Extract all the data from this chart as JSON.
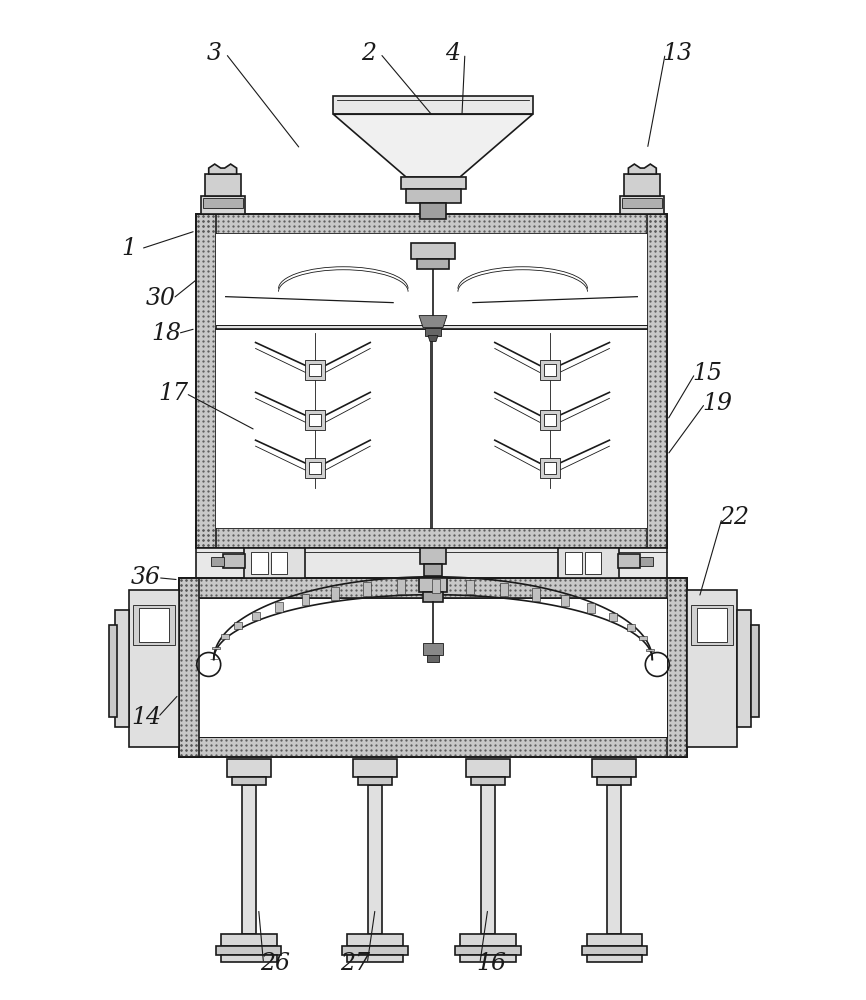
{
  "bg_color": "#ffffff",
  "line_color": "#1a1a1a",
  "lw_main": 1.2,
  "lw_thin": 0.6,
  "lw_thick": 2.0,
  "label_fontsize": 17,
  "labels_data": [
    [
      "1",
      128,
      248,
      195,
      230
    ],
    [
      "2",
      368,
      52,
      433,
      115
    ],
    [
      "3",
      213,
      52,
      300,
      148
    ],
    [
      "4",
      453,
      52,
      462,
      115
    ],
    [
      "13",
      678,
      52,
      648,
      148
    ],
    [
      "14",
      145,
      718,
      178,
      695
    ],
    [
      "15",
      708,
      373,
      668,
      420
    ],
    [
      "16",
      492,
      965,
      488,
      910
    ],
    [
      "17",
      173,
      393,
      255,
      430
    ],
    [
      "18",
      165,
      333,
      195,
      328
    ],
    [
      "19",
      718,
      403,
      668,
      455
    ],
    [
      "22",
      735,
      518,
      700,
      598
    ],
    [
      "26",
      275,
      965,
      258,
      910
    ],
    [
      "27",
      355,
      965,
      375,
      910
    ],
    [
      "30",
      160,
      298,
      197,
      278
    ],
    [
      "36",
      145,
      578,
      178,
      580
    ]
  ]
}
